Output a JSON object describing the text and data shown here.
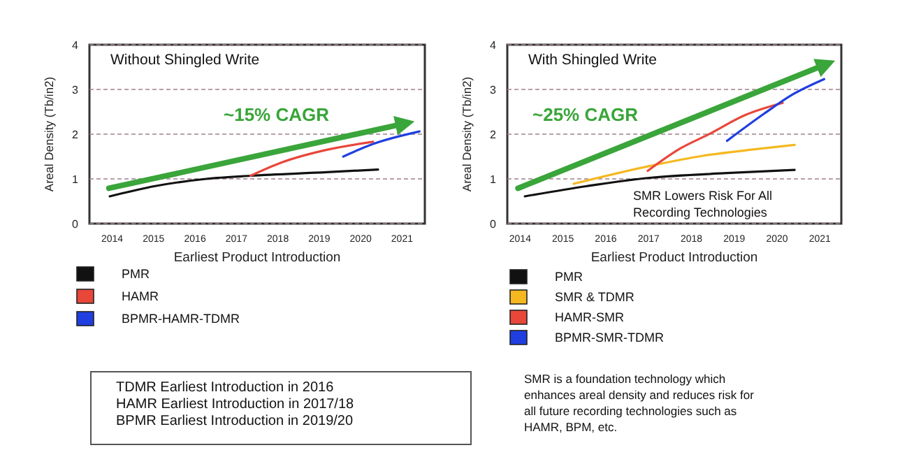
{
  "chart_data": [
    {
      "type": "line",
      "title": "Without Shingled Write",
      "xlabel": "Earliest Product Introduction",
      "ylabel": "Areal Density (Tb/in2)",
      "xlim": [
        2013.45,
        2021.55
      ],
      "xticks": [
        2014,
        2015,
        2016,
        2017,
        2018,
        2019,
        2020,
        2021
      ],
      "ylim": [
        0,
        4
      ],
      "yticks": [
        0,
        1,
        2,
        3,
        4
      ],
      "grid": "y",
      "legend": "bottom",
      "series": [
        {
          "name": "PMR",
          "color": "#111111",
          "x": [
            2013.94,
            2015.04,
            2016.27,
            2017.34,
            2019.18,
            2020.42
          ],
          "values": [
            0.61,
            0.84,
            1.0,
            1.07,
            1.15,
            1.21
          ]
        },
        {
          "name": "HAMR",
          "color": "#e8473a",
          "x": [
            2017.34,
            2018.07,
            2019.18,
            2020.3
          ],
          "values": [
            1.07,
            1.36,
            1.65,
            1.83
          ]
        },
        {
          "name": "BPMR-HAMR-TDMR",
          "color": "#1f3fe0",
          "x": [
            2019.58,
            2020.3,
            2021.42
          ],
          "values": [
            1.5,
            1.78,
            2.06
          ]
        },
        {
          "color": "#3aa53a",
          "x": [
            2013.92,
            2020.98
          ],
          "values": [
            0.79,
            2.22
          ]
        }
      ],
      "annotations": [
        "~15% CAGR",
        "TDMR Earliest Introduction in 2016",
        "HAMR Earliest Introduction in 2017/18",
        "BPMR Earliest Introduction in 2019/20"
      ]
    },
    {
      "type": "line",
      "title": "With Shingled Write",
      "xlabel": "Earliest Product Introduction",
      "ylabel": "Areal Density (Tb/in2)",
      "xlim": [
        2013.7,
        2021.5
      ],
      "xticks": [
        2014,
        2015,
        2016,
        2017,
        2018,
        2019,
        2020,
        2021
      ],
      "ylim": [
        0,
        4
      ],
      "yticks": [
        0,
        1,
        2,
        3,
        4
      ],
      "grid": "y",
      "legend": "bottom",
      "series": [
        {
          "name": "PMR",
          "color": "#111111",
          "x": [
            2014.11,
            2015.57,
            2016.98,
            2018.83,
            2020.41
          ],
          "values": [
            0.61,
            0.84,
            1.02,
            1.13,
            1.2
          ]
        },
        {
          "name": "SMR & TDMR",
          "color": "#f5b820",
          "x": [
            2015.25,
            2016.98,
            2018.29,
            2019.37,
            2020.41
          ],
          "values": [
            0.89,
            1.28,
            1.52,
            1.65,
            1.76
          ]
        },
        {
          "name": "HAMR-SMR",
          "color": "#e8473a",
          "x": [
            2016.98,
            2017.74,
            2018.39,
            2019.26,
            2020.13
          ],
          "values": [
            1.18,
            1.68,
            1.99,
            2.43,
            2.7
          ]
        },
        {
          "name": "BPMR-SMR-TDMR",
          "color": "#1f3fe0",
          "x": [
            2018.83,
            2019.7,
            2020.35,
            2021.1
          ],
          "values": [
            1.85,
            2.46,
            2.88,
            3.23
          ]
        },
        {
          "color": "#3aa53a",
          "x": [
            2013.95,
            2021.06
          ],
          "values": [
            0.79,
            3.53
          ]
        }
      ],
      "annotations": [
        "~25% CAGR",
        "SMR Lowers Risk For All",
        "Recording Technologies",
        "SMR is a foundation technology which",
        "enhances areal density and reduces risk for",
        "all future recording technologies such as",
        "HAMR, BPM, etc."
      ]
    }
  ]
}
